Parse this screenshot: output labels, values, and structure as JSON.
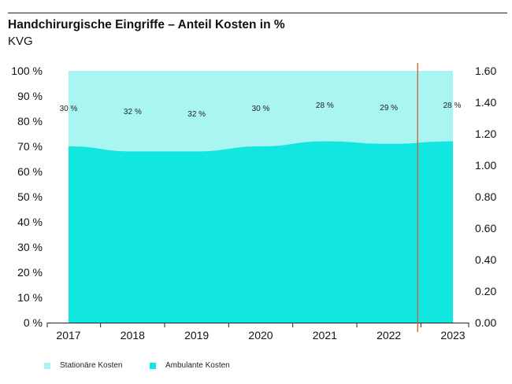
{
  "header": {
    "title": "Handchirurgische Eingriffe – Anteil Kosten in %",
    "subtitle": "KVG"
  },
  "chart_data": {
    "type": "area",
    "stacked": true,
    "categories": [
      "2017",
      "2018",
      "2019",
      "2020",
      "2021",
      "2022",
      "2023"
    ],
    "series": [
      {
        "name": "Stationäre Kosten",
        "color": "#a8f5f2",
        "values": [
          30,
          32,
          32,
          30,
          28,
          29,
          28
        ]
      },
      {
        "name": "Ambulante Kosten",
        "color": "#12e6e0",
        "values": [
          70,
          68,
          68,
          70,
          72,
          71,
          72
        ]
      }
    ],
    "data_labels": [
      "30 %",
      "32 %",
      "32 %",
      "30 %",
      "28 %",
      "29 %",
      "28 %"
    ],
    "y_left": {
      "ylim": [
        0,
        100
      ],
      "ticks": [
        "0 %",
        "10 %",
        "20 %",
        "30 %",
        "40 %",
        "50 %",
        "60 %",
        "70 %",
        "80 %",
        "90 %",
        "100 %"
      ]
    },
    "y_right": {
      "ylim": [
        0,
        1.6
      ],
      "ticks": [
        "0.00",
        "0.20",
        "0.40",
        "0.60",
        "0.80",
        "1.00",
        "1.20",
        "1.40",
        "1.60"
      ]
    },
    "marker_line": {
      "x": 2022.45,
      "color": "#d2592c"
    },
    "grid": false,
    "legend_position": "bottom-left"
  }
}
